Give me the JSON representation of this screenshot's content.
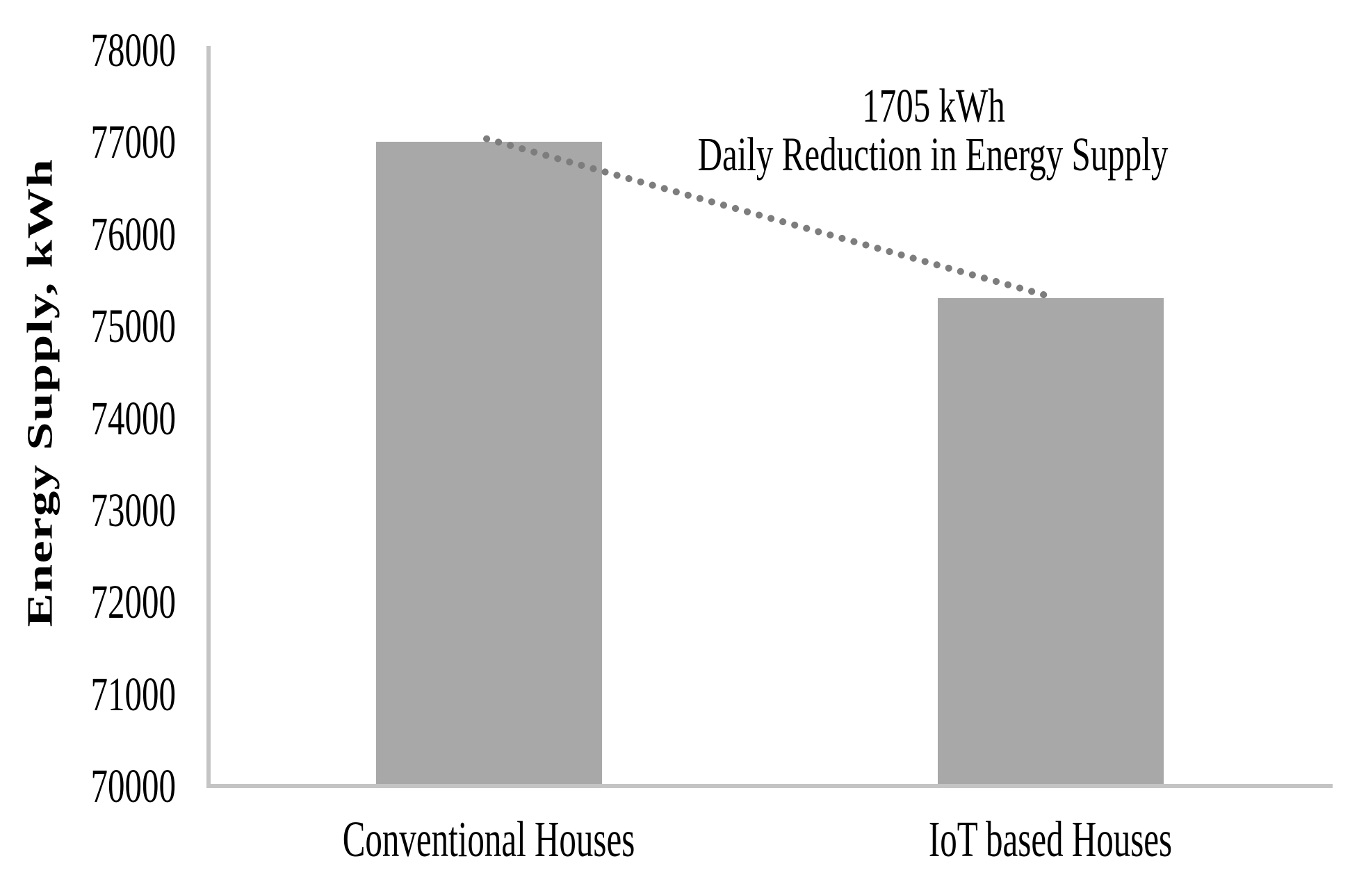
{
  "chart_data": {
    "type": "bar",
    "title": "",
    "categories": [
      "Conventional Houses",
      "IoT based Houses"
    ],
    "values": [
      77005,
      75300
    ],
    "xlabel": "",
    "ylabel": "Energy Supply, kWh",
    "ylim": [
      70000,
      78000
    ],
    "ytick_step": 1000,
    "ytick_labels": [
      "70000",
      "71000",
      "72000",
      "73000",
      "74000",
      "75000",
      "76000",
      "77000",
      "78000"
    ],
    "grid": false,
    "legend": "none",
    "bar_color": "#a8a8a8",
    "axis_color": "#c4c4c4",
    "connector_color": "#7d7d7d",
    "annotation": {
      "line1": "1705 kWh",
      "line2": "Daily Reduction in Energy Supply"
    }
  }
}
